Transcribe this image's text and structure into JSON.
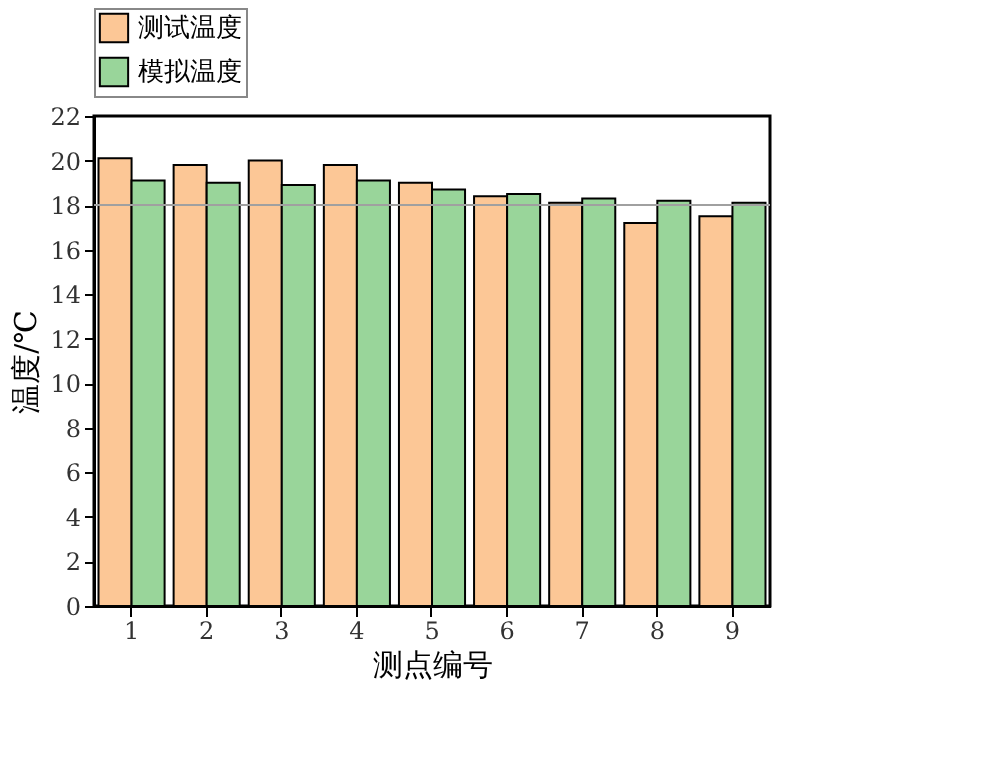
{
  "chart_data": {
    "type": "bar",
    "xlabel": "测点编号",
    "ylabel": "温度/℃",
    "categories": [
      "1",
      "2",
      "3",
      "4",
      "5",
      "6",
      "7",
      "8",
      "9"
    ],
    "series": [
      {
        "name": "测试温度",
        "color": "#fcc796",
        "values": [
          20.1,
          19.8,
          20.0,
          19.8,
          19.0,
          18.4,
          18.1,
          17.2,
          17.5
        ]
      },
      {
        "name": "模拟温度",
        "color": "#99d59a",
        "values": [
          19.1,
          19.0,
          18.9,
          19.1,
          18.7,
          18.5,
          18.3,
          18.2,
          18.1
        ]
      }
    ],
    "ylim": [
      0,
      22
    ],
    "yticks": [
      0,
      2,
      4,
      6,
      8,
      10,
      12,
      14,
      16,
      18,
      20,
      22
    ],
    "ref_lines": [
      {
        "axis": "y",
        "value": 18,
        "color": "#a0a0a0"
      }
    ],
    "legend": "top",
    "grid": false
  }
}
